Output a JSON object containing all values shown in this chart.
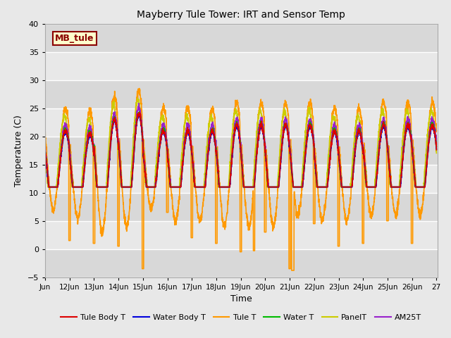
{
  "title": "Mayberry Tule Tower: IRT and Sensor Temp",
  "xlabel": "Time",
  "ylabel": "Temperature (C)",
  "ylim": [
    -5,
    40
  ],
  "background_color": "#e8e8e8",
  "plot_bg": "#dcdcdc",
  "grid_color": "#ffffff",
  "label_box": "MB_tule",
  "series": {
    "Tule Body T": {
      "color": "#dd0000",
      "lw": 1.2
    },
    "Water Body T": {
      "color": "#0000dd",
      "lw": 1.2
    },
    "Tule T": {
      "color": "#ff9900",
      "lw": 1.2
    },
    "Water T": {
      "color": "#00bb00",
      "lw": 1.2
    },
    "PanelT": {
      "color": "#cccc00",
      "lw": 1.2
    },
    "AM25T": {
      "color": "#9922cc",
      "lw": 1.2
    }
  }
}
